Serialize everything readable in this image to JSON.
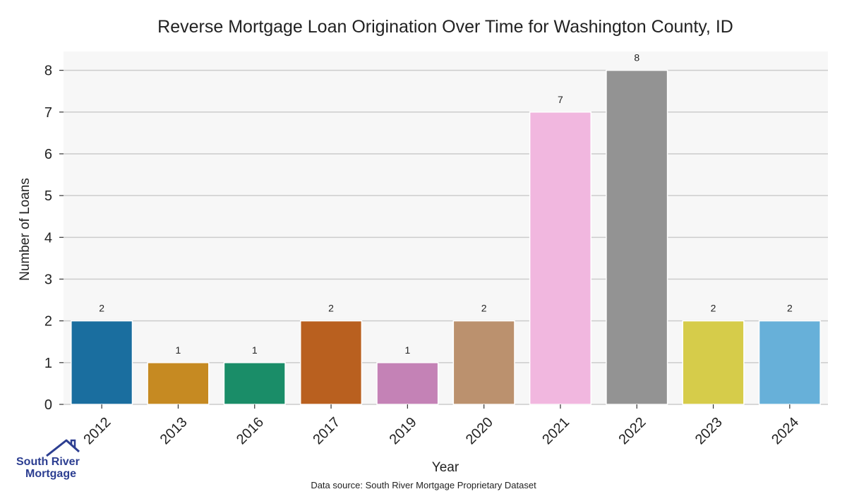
{
  "chart_data": {
    "type": "bar",
    "title": "Reverse Mortgage Loan Origination Over Time for Washington County, ID",
    "xlabel": "Year",
    "ylabel": "Number of Loans",
    "categories": [
      "2012",
      "2013",
      "2016",
      "2017",
      "2019",
      "2020",
      "2021",
      "2022",
      "2023",
      "2024"
    ],
    "values": [
      2,
      1,
      1,
      2,
      1,
      2,
      7,
      8,
      2,
      2
    ],
    "colors": [
      "#1a6e9f",
      "#c68a22",
      "#1a8d68",
      "#b9601f",
      "#c482b6",
      "#bb916e",
      "#f1b7df",
      "#939393",
      "#d6cc4a",
      "#67b0d9"
    ],
    "yticks": [
      "0",
      "1",
      "2",
      "3",
      "4",
      "5",
      "6",
      "7",
      "8"
    ],
    "ylim": [
      0,
      8.45
    ],
    "grid": true,
    "background": "#f7f7f7"
  },
  "source_note": "Data source: South River Mortgage Proprietary Dataset",
  "logo": {
    "line1": "South River",
    "line2": "Mortgage",
    "icon": "house-icon"
  }
}
